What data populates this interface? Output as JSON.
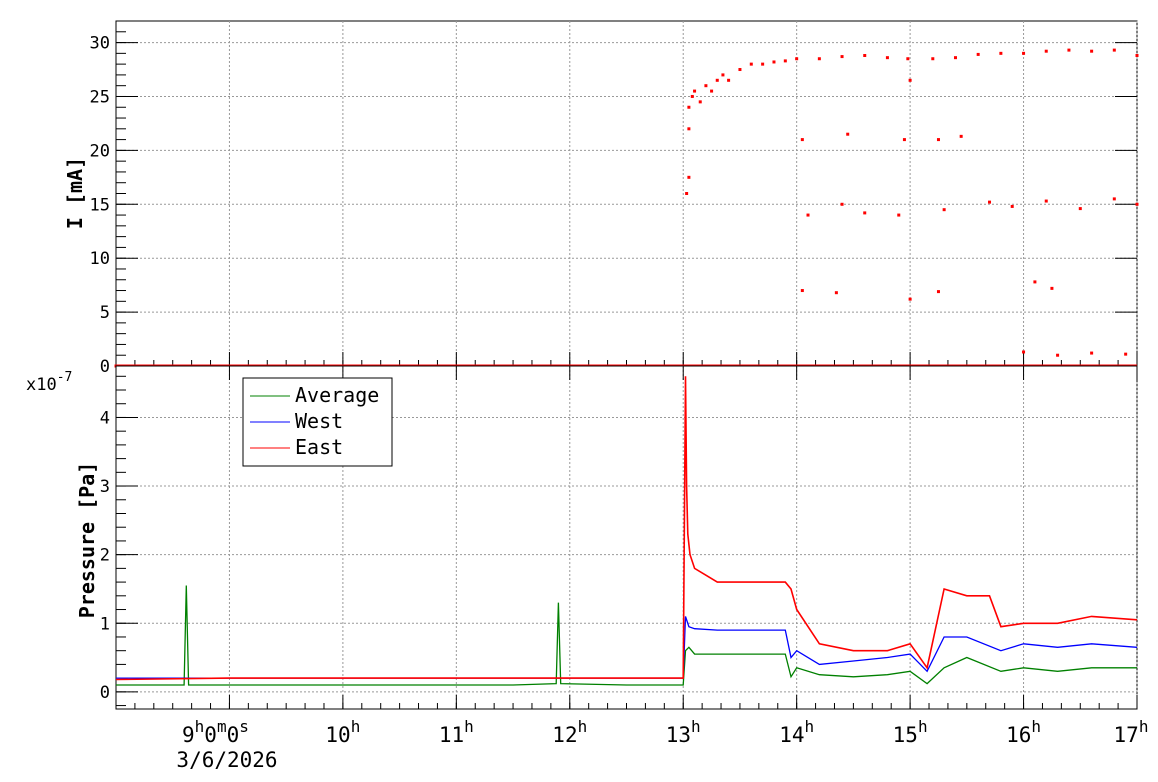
{
  "chart_data": [
    {
      "type": "scatter",
      "title": "",
      "xlabel": "",
      "ylabel": "I [mA]",
      "ylim": [
        0,
        32
      ],
      "y_ticks": [
        "0",
        "5",
        "10",
        "15",
        "20",
        "25",
        "30"
      ],
      "grid": true,
      "series": [
        {
          "color": "#ff0000",
          "x": [
            8.0,
            9.0,
            10.0,
            11.0,
            12.0,
            13.0,
            13.03,
            13.05,
            13.08,
            13.1,
            13.15,
            13.2,
            13.25,
            13.3,
            13.35,
            13.4,
            13.5,
            13.6,
            13.7,
            13.8,
            13.9,
            14.0,
            14.2,
            14.4,
            14.6,
            14.8,
            14.98,
            15.0,
            15.03,
            15.2,
            15.4,
            15.6,
            15.8,
            16.0,
            16.2,
            16.4,
            16.6,
            16.8,
            17.0,
            13.05,
            14.05,
            14.45,
            14.95,
            15.25,
            15.45,
            13.05,
            14.1,
            14.4,
            14.6,
            14.9,
            15.3,
            15.7,
            15.9,
            16.2,
            16.5,
            16.8,
            17.0,
            14.05,
            14.35,
            15.0,
            15.25,
            16.1,
            16.25,
            16.0,
            16.3,
            16.6,
            16.9
          ],
          "y": [
            0,
            0,
            0,
            0,
            0,
            0,
            16,
            22,
            25,
            25.5,
            24.5,
            26,
            25.5,
            26.5,
            27,
            26.5,
            27.5,
            28,
            28,
            28.2,
            28.3,
            28.5,
            28.5,
            28.7,
            28.8,
            28.6,
            28.5,
            26.5,
            0,
            28.5,
            28.6,
            28.9,
            29,
            29,
            29.2,
            29.3,
            29.2,
            29.3,
            28.8,
            17.5,
            21,
            21.5,
            21,
            21,
            21.3,
            24,
            14,
            15,
            14.2,
            14,
            14.5,
            15.2,
            14.8,
            15.3,
            14.6,
            15.5,
            15,
            7,
            6.8,
            6.2,
            6.9,
            7.8,
            7.2,
            1.3,
            1.0,
            1.2,
            1.1
          ]
        }
      ]
    },
    {
      "type": "line",
      "title": "",
      "xlabel": "",
      "ylabel": "Pressure [Pa]",
      "y_multiplier": "x10",
      "y_multiplier_exponent": "-7",
      "ylim": [
        -0.25,
        4.75
      ],
      "y_ticks": [
        "0",
        "1",
        "2",
        "3",
        "4"
      ],
      "x_tick_labels": [
        {
          "hour": "9",
          "sup1": "h",
          "min": "0",
          "sup2": "m",
          "sec": "0",
          "sup3": "s"
        },
        {
          "hour": "10",
          "sup1": "h"
        },
        {
          "hour": "11",
          "sup1": "h"
        },
        {
          "hour": "12",
          "sup1": "h"
        },
        {
          "hour": "13",
          "sup1": "h"
        },
        {
          "hour": "14",
          "sup1": "h"
        },
        {
          "hour": "15",
          "sup1": "h"
        },
        {
          "hour": "16",
          "sup1": "h"
        },
        {
          "hour": "17",
          "sup1": "h"
        }
      ],
      "x_date": "3/6/2026",
      "xlim": [
        8.0,
        17.0
      ],
      "grid": true,
      "legend_position": "top-left",
      "series": [
        {
          "name": "Average",
          "color": "#008000",
          "x": [
            8.0,
            8.6,
            8.62,
            8.64,
            9.5,
            10.5,
            11.5,
            11.88,
            11.9,
            11.92,
            12.5,
            13.0,
            13.02,
            13.05,
            13.1,
            13.3,
            13.6,
            13.9,
            13.95,
            14.0,
            14.2,
            14.5,
            14.8,
            15.0,
            15.15,
            15.3,
            15.5,
            15.8,
            16.0,
            16.3,
            16.6,
            17.0
          ],
          "y": [
            0.1,
            0.1,
            1.55,
            0.1,
            0.1,
            0.1,
            0.1,
            0.12,
            1.3,
            0.12,
            0.1,
            0.1,
            0.6,
            0.65,
            0.55,
            0.55,
            0.55,
            0.55,
            0.22,
            0.35,
            0.25,
            0.22,
            0.25,
            0.3,
            0.12,
            0.35,
            0.5,
            0.3,
            0.35,
            0.3,
            0.35,
            0.35
          ]
        },
        {
          "name": "West",
          "color": "#0000ff",
          "x": [
            8.0,
            9.0,
            10.0,
            11.0,
            12.0,
            13.0,
            13.02,
            13.05,
            13.1,
            13.3,
            13.6,
            13.9,
            13.95,
            14.0,
            14.2,
            14.5,
            14.8,
            15.0,
            15.15,
            15.3,
            15.5,
            15.8,
            16.0,
            16.3,
            16.6,
            17.0
          ],
          "y": [
            0.2,
            0.2,
            0.2,
            0.2,
            0.2,
            0.2,
            1.1,
            0.95,
            0.92,
            0.9,
            0.9,
            0.9,
            0.5,
            0.6,
            0.4,
            0.45,
            0.5,
            0.55,
            0.3,
            0.8,
            0.8,
            0.6,
            0.7,
            0.65,
            0.7,
            0.65
          ]
        },
        {
          "name": "East",
          "color": "#ff0000",
          "x": [
            8.0,
            9.0,
            10.0,
            11.0,
            12.0,
            13.0,
            13.02,
            13.03,
            13.04,
            13.06,
            13.1,
            13.2,
            13.3,
            13.5,
            13.7,
            13.9,
            13.95,
            14.0,
            14.2,
            14.5,
            14.8,
            15.0,
            15.15,
            15.3,
            15.5,
            15.7,
            15.8,
            16.0,
            16.3,
            16.6,
            17.0
          ],
          "y": [
            0.18,
            0.2,
            0.2,
            0.2,
            0.2,
            0.2,
            4.6,
            3.0,
            2.3,
            2.0,
            1.8,
            1.7,
            1.6,
            1.6,
            1.6,
            1.6,
            1.5,
            1.2,
            0.7,
            0.6,
            0.6,
            0.7,
            0.35,
            1.5,
            1.4,
            1.4,
            0.95,
            1.0,
            1.0,
            1.1,
            1.05
          ]
        }
      ]
    }
  ]
}
